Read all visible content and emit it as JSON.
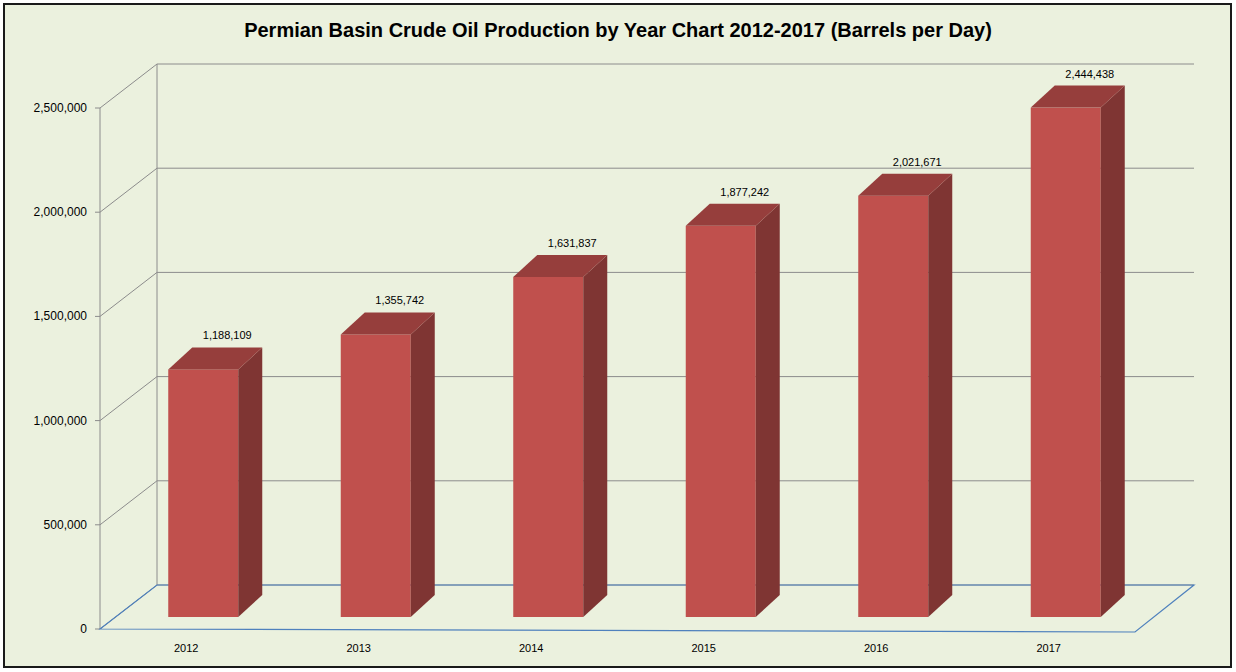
{
  "chart_data": {
    "type": "bar",
    "title": "Permian Basin Crude Oil Production by Year Chart 2012-2017  (Barrels per Day)",
    "categories": [
      "2012",
      "2013",
      "2014",
      "2015",
      "2016",
      "2017"
    ],
    "values": [
      1188109,
      1355742,
      1631837,
      1877242,
      2021671,
      2444438
    ],
    "value_labels": [
      "1,188,109",
      "1,355,742",
      "1,631,837",
      "1,877,242",
      "2,021,671",
      "2,444,438"
    ],
    "color": "#c0504d",
    "ylim": [
      0,
      2500000
    ],
    "yticks": [
      0,
      {
        "value": 500000,
        "label": "500,000"
      },
      {
        "value": 1000000,
        "label": "1,000,000"
      },
      {
        "value": 1500000,
        "label": "1,500,000"
      },
      {
        "value": 2000000,
        "label": "2,000,000"
      },
      {
        "value": 2500000,
        "label": "2,500,000"
      }
    ],
    "grid": true,
    "data_labels": true
  }
}
